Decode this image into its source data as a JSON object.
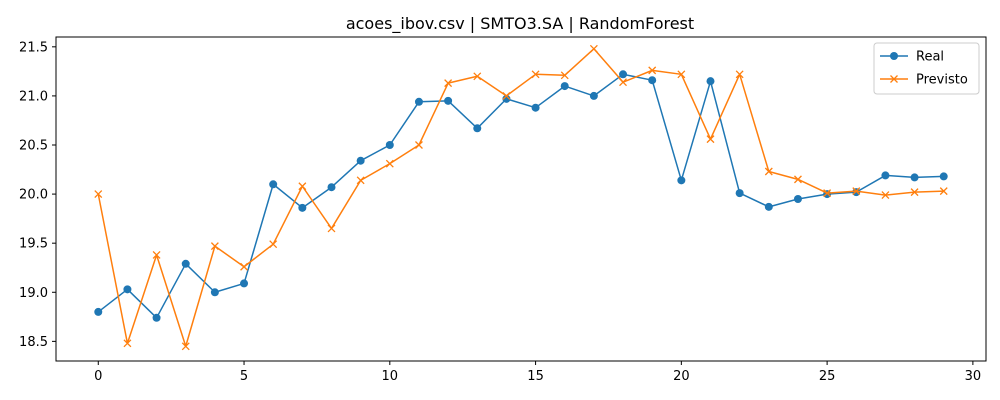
{
  "chart_data": {
    "type": "line",
    "title": "acoes_ibov.csv | SMTO3.SA | RandomForest",
    "xlabel": "",
    "ylabel": "",
    "xlim": [
      -1.45,
      30.45
    ],
    "ylim": [
      18.3,
      21.6
    ],
    "xticks": [
      0,
      5,
      10,
      15,
      20,
      25,
      30
    ],
    "xtick_labels": [
      "0",
      "5",
      "10",
      "15",
      "20",
      "25",
      "30"
    ],
    "yticks": [
      18.5,
      19.0,
      19.5,
      20.0,
      20.5,
      21.0,
      21.5
    ],
    "ytick_labels": [
      "18.5",
      "19.0",
      "19.5",
      "20.0",
      "20.5",
      "21.0",
      "21.5"
    ],
    "grid": false,
    "legend_position": "top-right",
    "x": [
      0,
      1,
      2,
      3,
      4,
      5,
      6,
      7,
      8,
      9,
      10,
      11,
      12,
      13,
      14,
      15,
      16,
      17,
      18,
      19,
      20,
      21,
      22,
      23,
      24,
      25,
      26,
      27,
      28,
      29
    ],
    "series": [
      {
        "name": "Real",
        "color": "#1f77b4",
        "marker": "circle",
        "values": [
          18.8,
          19.03,
          18.74,
          19.29,
          19.0,
          19.09,
          20.1,
          19.86,
          20.07,
          20.34,
          20.5,
          20.94,
          20.95,
          20.67,
          20.97,
          20.88,
          21.1,
          21.0,
          21.22,
          21.16,
          20.14,
          21.15,
          20.01,
          19.87,
          19.95,
          20.0,
          20.02,
          20.19,
          20.17,
          20.18
        ]
      },
      {
        "name": "Previsto",
        "color": "#ff7f0e",
        "marker": "x",
        "values": [
          20.0,
          18.48,
          19.38,
          18.45,
          19.47,
          19.26,
          19.49,
          20.08,
          19.65,
          20.14,
          20.31,
          20.5,
          21.13,
          21.2,
          21.0,
          21.22,
          21.21,
          21.48,
          21.14,
          21.26,
          21.22,
          20.56,
          21.22,
          20.23,
          20.15,
          20.01,
          20.03,
          19.99,
          20.02,
          20.03
        ]
      }
    ]
  }
}
